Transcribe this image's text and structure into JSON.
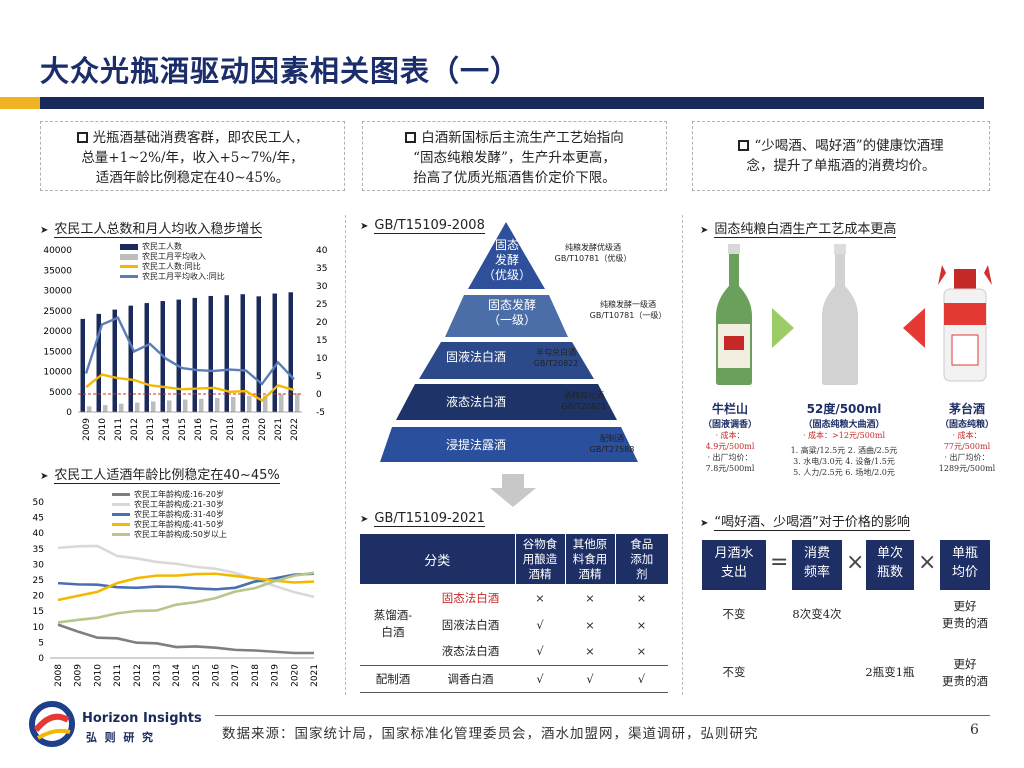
{
  "title": "大众光瓶酒驱动因素相关图表（一）",
  "boxes": [
    {
      "lines": [
        "光瓶酒基础消费客群，即农民工人，",
        "总量+1~2%/年，收入+5~7%/年，",
        "适酒年龄比例稳定在40~45%。"
      ]
    },
    {
      "lines": [
        "白酒新国标后主流生产工艺始指向",
        "“固态纯粮发酵”，生产升本更高，",
        "抬高了优质光瓶酒售价定价下限。"
      ]
    },
    {
      "lines": [
        "“少喝酒、喝好酒”的健康饮酒理",
        "念，提升了单瓶酒的消费均价。"
      ]
    }
  ],
  "sections": {
    "s1": "农民工人总数和月人均收入稳步增长",
    "s2": "农民工人适酒年龄比例稳定在40~45%",
    "s3": "GB/T15109-2008",
    "s4": "GB/T15109-2021",
    "s5": "固态纯粮白酒生产工艺成本更高",
    "s6": "“喝好酒、少喝酒”对于价格的影响"
  },
  "chart_data": [
    {
      "type": "bar",
      "title": "农民工人总数和月人均收入稳步增长",
      "categories": [
        "2009",
        "2010",
        "2011",
        "2012",
        "2013",
        "2014",
        "2015",
        "2016",
        "2017",
        "2018",
        "2019",
        "2020",
        "2021",
        "2022"
      ],
      "ylim": [
        0,
        40000
      ],
      "y2lim": [
        -5,
        40
      ],
      "yticks": [
        "40000",
        "35000",
        "30000",
        "25000",
        "20000",
        "15000",
        "10000",
        "5000",
        "0"
      ],
      "y2ticks": [
        "40",
        "35",
        "30",
        "25",
        "20",
        "15",
        "10",
        "5",
        "0",
        "-5"
      ],
      "series": [
        {
          "name": "农民工人数",
          "type": "bar",
          "axis": "left",
          "color": "#1a2a5a",
          "values": [
            22978,
            24223,
            25278,
            26261,
            26894,
            27395,
            27747,
            28171,
            28652,
            28836,
            29077,
            28560,
            29251,
            29562
          ]
        },
        {
          "name": "农民工月平均收入",
          "type": "bar",
          "axis": "left",
          "color": "#bdbdbd",
          "values": [
            1417,
            1690,
            2049,
            2290,
            2609,
            2864,
            3072,
            3275,
            3485,
            3721,
            3962,
            4072,
            4432,
            4615
          ]
        },
        {
          "name": "农民工人数:同比",
          "type": "line",
          "axis": "right",
          "color": "#f5b800",
          "values": [
            1.9,
            5.4,
            4.4,
            3.9,
            2.4,
            1.9,
            1.3,
            1.5,
            1.7,
            0.6,
            0.8,
            -1.8,
            2.4,
            1.1
          ]
        },
        {
          "name": "农民工月平均收入:同比",
          "type": "line",
          "axis": "right",
          "color": "#5b7db8",
          "values": [
            5.7,
            19.3,
            21.2,
            11.8,
            13.9,
            9.8,
            7.2,
            6.6,
            6.4,
            6.8,
            6.5,
            2.8,
            8.8,
            4.1
          ]
        }
      ]
    },
    {
      "type": "line",
      "title": "农民工人适酒年龄比例稳定在40~45%",
      "categories": [
        "2008",
        "2009",
        "2010",
        "2011",
        "2012",
        "2013",
        "2014",
        "2015",
        "2016",
        "2017",
        "2018",
        "2019",
        "2020",
        "2021"
      ],
      "ylim": [
        0,
        50
      ],
      "yticks": [
        "50",
        "45",
        "40",
        "35",
        "30",
        "25",
        "20",
        "15",
        "10",
        "5",
        "0"
      ],
      "series": [
        {
          "name": "农民工年龄构成:16-20岁",
          "color": "#7f7f7f",
          "values": [
            10.7,
            8.5,
            6.5,
            6.3,
            4.9,
            4.7,
            3.5,
            3.7,
            3.3,
            2.6,
            2.4,
            2.0,
            1.6,
            1.6
          ]
        },
        {
          "name": "农民工年龄构成:21-30岁",
          "color": "#d9d9d9",
          "values": [
            35.3,
            35.8,
            35.9,
            32.7,
            31.9,
            30.8,
            30.2,
            29.2,
            28.6,
            27.3,
            25.2,
            23.1,
            21.1,
            19.6
          ]
        },
        {
          "name": "农民工年龄构成:31-40岁",
          "color": "#4a6fb0",
          "values": [
            24.0,
            23.6,
            23.5,
            22.7,
            22.5,
            22.9,
            22.8,
            22.3,
            22.0,
            22.5,
            24.5,
            25.5,
            26.7,
            27.0
          ]
        },
        {
          "name": "农民工年龄构成:41-50岁",
          "color": "#f5b800",
          "values": [
            18.6,
            19.9,
            21.2,
            24.0,
            25.6,
            26.4,
            26.4,
            26.9,
            27.0,
            26.3,
            25.5,
            24.8,
            24.2,
            24.5
          ]
        },
        {
          "name": "农民工年龄构成:50岁以上",
          "color": "#b5c78a",
          "values": [
            11.4,
            12.2,
            12.9,
            14.3,
            15.1,
            15.2,
            17.1,
            17.9,
            19.2,
            21.3,
            22.4,
            24.6,
            26.4,
            27.3
          ]
        }
      ]
    }
  ],
  "pyramid": [
    {
      "label": [
        "固态",
        "发酵",
        "（优级）"
      ],
      "color": "#2e4f9a",
      "note": [
        "纯粮发酵优级酒",
        "GB/T10781（优级）"
      ]
    },
    {
      "label": [
        "固态发酵",
        "（一级）"
      ],
      "color": "#4b6ea8",
      "note": [
        "纯粮发酵一级酒",
        "GB/T10781（一级）"
      ]
    },
    {
      "label": [
        "固液法白酒"
      ],
      "color": "#2c4a8a",
      "note": [
        "半勾兑白酒",
        "GB/T20822"
      ]
    },
    {
      "label": [
        "液态法白酒"
      ],
      "color": "#1e3468",
      "note": [
        "酒精勾兑酒",
        "GB/T20821"
      ]
    },
    {
      "label": [
        "浸提法露酒"
      ],
      "color": "#2a4f9c",
      "note": [
        "配制酒",
        "GB/T27588"
      ]
    }
  ],
  "gb_table": {
    "header": {
      "type": "分类",
      "c1": "谷物食用酿造酒精",
      "c2": "其他原料食用酒精",
      "c3": "食品添加剂"
    },
    "group1": "蒸馏酒-白酒",
    "group2": "配制酒",
    "rows": [
      {
        "name": "固态法白酒",
        "highlight": true,
        "v1": "×",
        "v2": "×",
        "v3": "×"
      },
      {
        "name": "固液法白酒",
        "highlight": false,
        "v1": "√",
        "v2": "×",
        "v3": "×"
      },
      {
        "name": "液态法白酒",
        "highlight": false,
        "v1": "√",
        "v2": "×",
        "v3": "×"
      },
      {
        "name": "调香白酒",
        "highlight": false,
        "v1": "√",
        "v2": "√",
        "v3": "√"
      }
    ]
  },
  "products": [
    {
      "name": "牛栏山",
      "sub": "（固液调香）",
      "red": [
        "· 成本：",
        "4.9元/500ml"
      ],
      "grey": [
        "· 出厂均价：",
        "7.8元/500ml"
      ]
    },
    {
      "name": "52度/500ml",
      "sub": "（固态纯粮大曲酒）",
      "red": [
        "· 成本：>12元/500ml"
      ],
      "grey": [
        "1. 高粱/12.5元   2. 酒曲/2.5元",
        "3. 水电/3.0元   4. 设备/1.5元",
        "5. 人力/2.5元   6. 场地/2.0元"
      ]
    },
    {
      "name": "茅台酒",
      "sub": "（固态纯粮）",
      "red": [
        "· 成本：",
        "77元/500ml"
      ],
      "grey": [
        "· 出厂均价：",
        "1289元/500ml"
      ]
    }
  ],
  "equation": {
    "terms": [
      [
        "月酒水",
        "支出"
      ],
      [
        "消费",
        "频率"
      ],
      [
        "单次",
        "瓶数"
      ],
      [
        "单瓶",
        "均价"
      ]
    ],
    "ops": [
      "=",
      "×",
      "×"
    ],
    "rows": [
      [
        "不变",
        "8次变4次",
        "",
        "更好|更贵的酒"
      ],
      [
        "不变",
        "",
        "2瓶变1瓶",
        "更好|更贵的酒"
      ]
    ]
  },
  "footer": {
    "brand": "Horizon Insights",
    "brand_cn": "弘  则  研  究",
    "source": "数据来源：国家统计局，国家标准化管理委员会，酒水加盟网，渠道调研，弘则研究",
    "page": "6"
  }
}
